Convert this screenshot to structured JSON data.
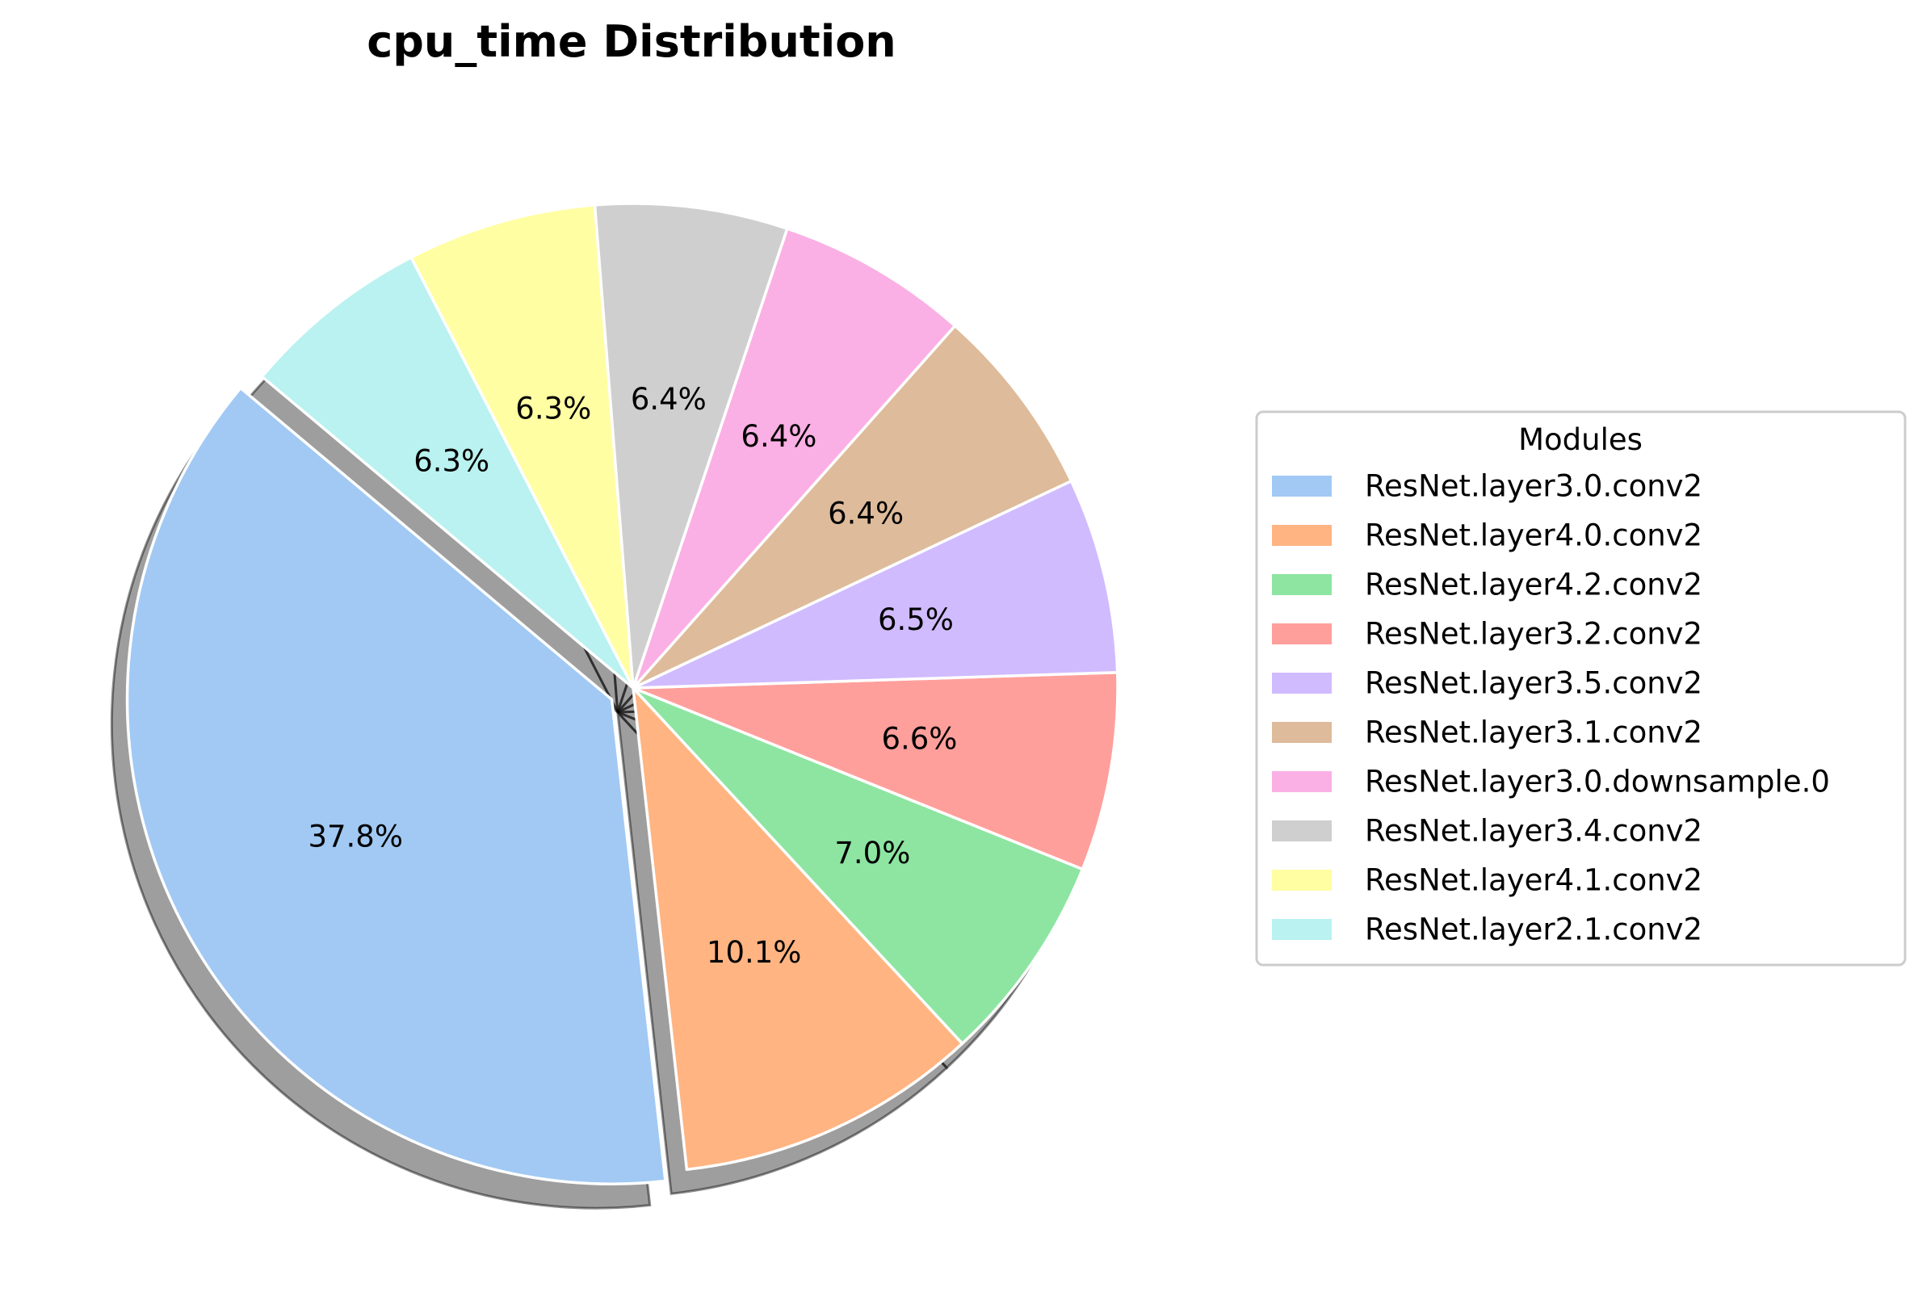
{
  "chart_data": {
    "type": "pie",
    "title": "cpu_time Distribution",
    "legend_title": "Modules",
    "legend_position": "right",
    "start_angle_deg": 140,
    "direction": "counterclockwise",
    "shadow": true,
    "exploded_slice": 0,
    "slices": [
      {
        "label": "ResNet.layer3.0.conv2",
        "value": 37.8,
        "pct_text": "37.8%",
        "color": "#a1c9f4"
      },
      {
        "label": "ResNet.layer4.0.conv2",
        "value": 10.1,
        "pct_text": "10.1%",
        "color": "#ffb482"
      },
      {
        "label": "ResNet.layer4.2.conv2",
        "value": 7.0,
        "pct_text": "7.0%",
        "color": "#8de5a1"
      },
      {
        "label": "ResNet.layer3.2.conv2",
        "value": 6.6,
        "pct_text": "6.6%",
        "color": "#ff9f9b"
      },
      {
        "label": "ResNet.layer3.5.conv2",
        "value": 6.5,
        "pct_text": "6.5%",
        "color": "#d0bbff"
      },
      {
        "label": "ResNet.layer3.1.conv2",
        "value": 6.4,
        "pct_text": "6.4%",
        "color": "#debb9b"
      },
      {
        "label": "ResNet.layer3.0.downsample.0",
        "value": 6.4,
        "pct_text": "6.4%",
        "color": "#fab0e4"
      },
      {
        "label": "ResNet.layer3.4.conv2",
        "value": 6.4,
        "pct_text": "6.4%",
        "color": "#cfcfcf"
      },
      {
        "label": "ResNet.layer4.1.conv2",
        "value": 6.3,
        "pct_text": "6.3%",
        "color": "#fffea3"
      },
      {
        "label": "ResNet.layer2.1.conv2",
        "value": 6.3,
        "pct_text": "6.3%",
        "color": "#b9f2f0"
      }
    ]
  }
}
